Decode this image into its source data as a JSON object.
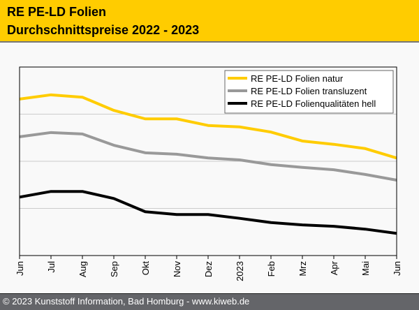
{
  "header": {
    "title_line1": "RE PE-LD Folien",
    "title_line2": "Durchschnittspreise 2022 - 2023"
  },
  "footer": {
    "copyright": "© 2023 Kunststoff Information, Bad Homburg - www.kiweb.de"
  },
  "chart_data": {
    "type": "line",
    "title": "RE PE-LD Folien Durchschnittspreise 2022 - 2023",
    "xlabel": "",
    "ylabel": "",
    "y_units": "relative (no y-axis tick labels shown; 0 = axis bottom, 4 = axis top, gridlines at 1, 2, 3)",
    "ylim": [
      0,
      4
    ],
    "grid": true,
    "legend_position": "top-right",
    "categories": [
      "Jun",
      "Jul",
      "Aug",
      "Sep",
      "Okt",
      "Nov",
      "Dez",
      "2023",
      "Feb",
      "Mrz",
      "Apr",
      "Mai",
      "Jun"
    ],
    "series": [
      {
        "name": "RE PE-LD Folien natur",
        "color": "#ffcc00",
        "values": [
          3.32,
          3.41,
          3.36,
          3.08,
          2.9,
          2.9,
          2.76,
          2.73,
          2.62,
          2.43,
          2.36,
          2.27,
          2.07
        ]
      },
      {
        "name": "RE PE-LD Folien transluzent",
        "color": "#999999",
        "values": [
          2.52,
          2.61,
          2.58,
          2.34,
          2.18,
          2.15,
          2.07,
          2.03,
          1.93,
          1.87,
          1.82,
          1.72,
          1.6
        ]
      },
      {
        "name": "RE PE-LD Folienqualitäten hell",
        "color": "#000000",
        "values": [
          1.24,
          1.36,
          1.36,
          1.21,
          0.93,
          0.87,
          0.87,
          0.79,
          0.7,
          0.65,
          0.62,
          0.56,
          0.47
        ]
      }
    ]
  }
}
